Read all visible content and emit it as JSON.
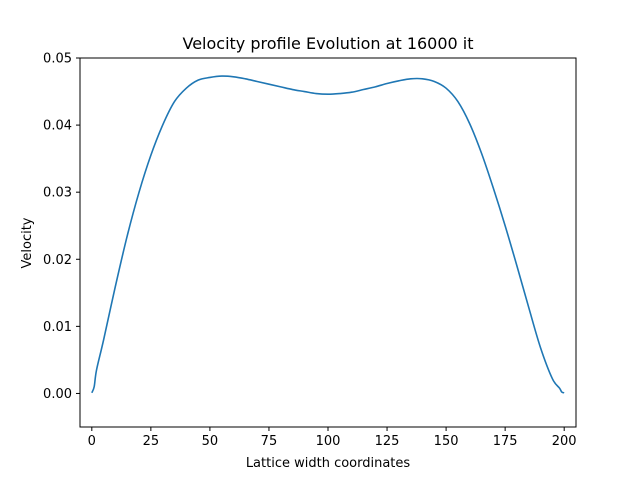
{
  "chart_data": {
    "type": "line",
    "title": "Velocity profile Evolution at 16000 it",
    "xlabel": "Lattice width coordinates",
    "ylabel": "Velocity",
    "xlim": [
      -5,
      205
    ],
    "ylim": [
      -0.005,
      0.05
    ],
    "xticks": [
      0,
      25,
      50,
      75,
      100,
      125,
      150,
      175,
      200
    ],
    "xtick_labels": [
      "0",
      "25",
      "50",
      "75",
      "100",
      "125",
      "150",
      "175",
      "200"
    ],
    "yticks": [
      0.0,
      0.01,
      0.02,
      0.03,
      0.04,
      0.05
    ],
    "ytick_labels": [
      "0.00",
      "0.01",
      "0.02",
      "0.03",
      "0.04",
      "0.05"
    ],
    "grid": false,
    "series": [
      {
        "color": "#1f77b4",
        "x": [
          0,
          1,
          2,
          5,
          10,
          15,
          20,
          25,
          30,
          35,
          40,
          45,
          50,
          55,
          60,
          65,
          70,
          75,
          80,
          85,
          90,
          95,
          100,
          105,
          110,
          115,
          120,
          125,
          130,
          135,
          140,
          145,
          150,
          155,
          160,
          165,
          170,
          175,
          180,
          185,
          190,
          195,
          198,
          199,
          200
        ],
        "y": [
          0.0001,
          0.001,
          0.0035,
          0.008,
          0.016,
          0.0235,
          0.03,
          0.0355,
          0.04,
          0.0435,
          0.0455,
          0.0467,
          0.0471,
          0.0473,
          0.0472,
          0.0469,
          0.0465,
          0.0461,
          0.0457,
          0.0453,
          0.045,
          0.0447,
          0.0446,
          0.0447,
          0.0449,
          0.0453,
          0.0457,
          0.0462,
          0.0466,
          0.0469,
          0.0469,
          0.0465,
          0.0455,
          0.0435,
          0.0402,
          0.0358,
          0.0306,
          0.025,
          0.019,
          0.0128,
          0.0068,
          0.0022,
          0.0008,
          0.0002,
          0.0001
        ]
      }
    ]
  }
}
